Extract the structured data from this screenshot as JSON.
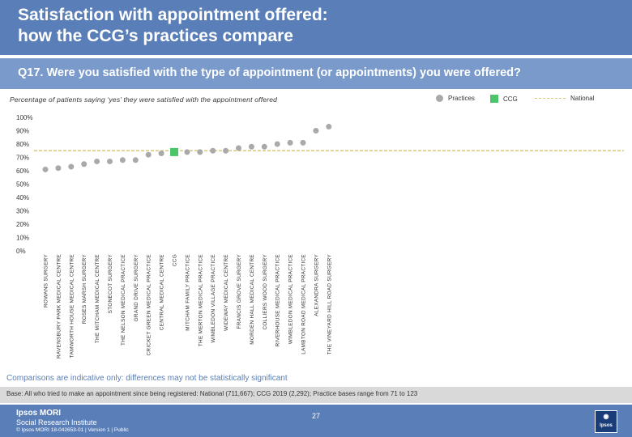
{
  "header": {
    "title": "Satisfaction with appointment offered:\nhow the CCG’s practices compare",
    "question": "Q17. Were you satisfied with the type of appointment (or appointments) you were offered?"
  },
  "chart_subtitle": "Percentage of patients saying ‘yes’ they were satisfied with the appointment offered",
  "legend": {
    "practices": "Practices",
    "ccg": "CCG",
    "national": "National"
  },
  "colors": {
    "practice_marker": "#a9a9a9",
    "ccg_marker": "#4cc46a",
    "national_line": "#d7c77e",
    "header": "#5a7eb7"
  },
  "chart_data": {
    "type": "scatter",
    "ylim": [
      0,
      100
    ],
    "y_ticks": [
      "0%",
      "10%",
      "20%",
      "30%",
      "40%",
      "50%",
      "60%",
      "70%",
      "80%",
      "90%",
      "100%"
    ],
    "grid": false,
    "legend_position": "top-right",
    "national": 75,
    "categories": [
      "ROWANS SURGERY",
      "RAVENSBURY PARK MEDICAL CENTRE",
      "TAMWORTH HOUSE MEDICAL CENTRE",
      "ROSES MARSH SURGERY",
      "THE MITCHAM MEDICAL CENTRE",
      "STONECOT SURGERY",
      "THE NELSON MEDICAL PRACTICE",
      "GRAND DRIVE SURGERY",
      "CRICKET GREEN MEDICAL PRACTICE",
      "CENTRAL MEDICAL CENTRE",
      "CCG",
      "MITCHAM FAMILY PRACTICE",
      "THE MERTON MEDICAL PRACTICE",
      "WIMBLEDON VILLAGE PRACTICE",
      "WIDEWAY MEDICAL CENTRE",
      "FRANCIS GROVE SURGERY",
      "MORDEN HALL MEDICAL CENTRE",
      "COLLIERS WOOD SURGERY",
      "RIVERHOUSE MEDICAL PRACTICE",
      "WIMBLEDON MEDICAL PRACTICE",
      "LAMBTON ROAD MEDICAL PRACTICE",
      "ALEXANDRA SURGERY",
      "THE VINEYARD HILL ROAD SURGERY"
    ],
    "values": [
      61,
      62,
      63,
      65,
      67,
      67,
      68,
      68,
      72,
      73,
      74,
      74,
      74,
      75,
      75,
      77,
      78,
      78,
      80,
      81,
      81,
      90,
      93
    ],
    "ccg_index": 10
  },
  "footer": {
    "note": "Comparisons are indicative only: differences may not be statistically significant",
    "base": "Base: All who tried to make an appointment since being registered: National (711,667); CCG 2019 (2,292); Practice bases range from 71 to 123",
    "brand": "Ipsos MORI",
    "brand_sub": "Social Research Institute",
    "copyright": "© Ipsos MORI     18-042653-01 | Version 1 | Public",
    "page": "27",
    "logo_text": "Ipsos"
  }
}
